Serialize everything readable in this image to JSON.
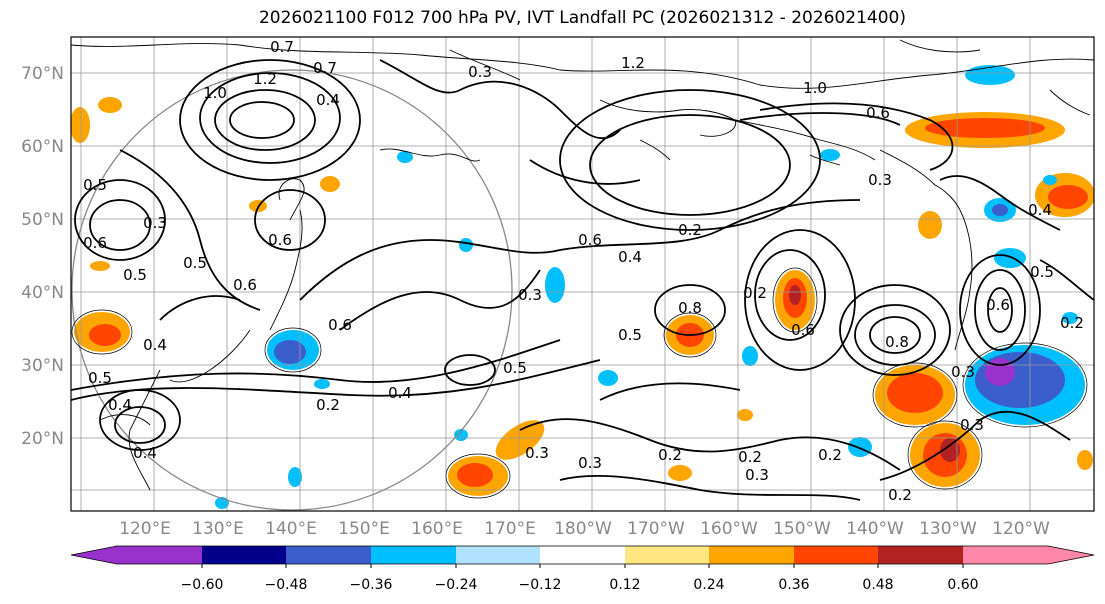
{
  "title": "2026021100 F012 700 hPa PV, IVT Landfall PC (2026021312 - 2026021400)",
  "lat_labels": [
    "70°N",
    "60°N",
    "50°N",
    "40°N",
    "30°N",
    "20°N"
  ],
  "lon_labels": [
    "120°E",
    "130°E",
    "140°E",
    "150°E",
    "160°E",
    "170°E",
    "180°W",
    "170°W",
    "160°W",
    "150°W",
    "140°W",
    "130°W",
    "120°W"
  ],
  "colorbar": {
    "tick_labels": [
      "−0.60",
      "−0.48",
      "−0.36",
      "−0.24",
      "−0.12",
      "0.12",
      "0.24",
      "0.36",
      "0.48",
      "0.60"
    ],
    "colors": [
      "#9932cc",
      "#00008b",
      "#3a5fcd",
      "#00bfff",
      "#b0e2ff",
      "#ffffff",
      "#ffe680",
      "#ffa500",
      "#ff4500",
      "#b22222",
      "#ff88aa"
    ]
  },
  "contour_labels": [
    "0.7",
    "0.7",
    "1.0",
    "1.2",
    "0.3",
    "1.2",
    "1.0",
    "0.6",
    "0.4",
    "0.5",
    "0.3",
    "0.5",
    "0.6",
    "0.5",
    "0.4",
    "0.6",
    "0.3",
    "0.6",
    "0.4",
    "0.2",
    "0.6",
    "0.8",
    "0.3",
    "0.4",
    "0.5",
    "0.2",
    "0.5",
    "0.3",
    "0.3",
    "0.3",
    "0.2",
    "0.2",
    "0.2",
    "0.2",
    "0.3",
    "0.5",
    "0.6",
    "0.4",
    "0.5",
    "0.8",
    "0.3",
    "0.2",
    "0.2",
    "0.4",
    "0.6",
    "0.5",
    "0.6",
    "0.4"
  ]
}
